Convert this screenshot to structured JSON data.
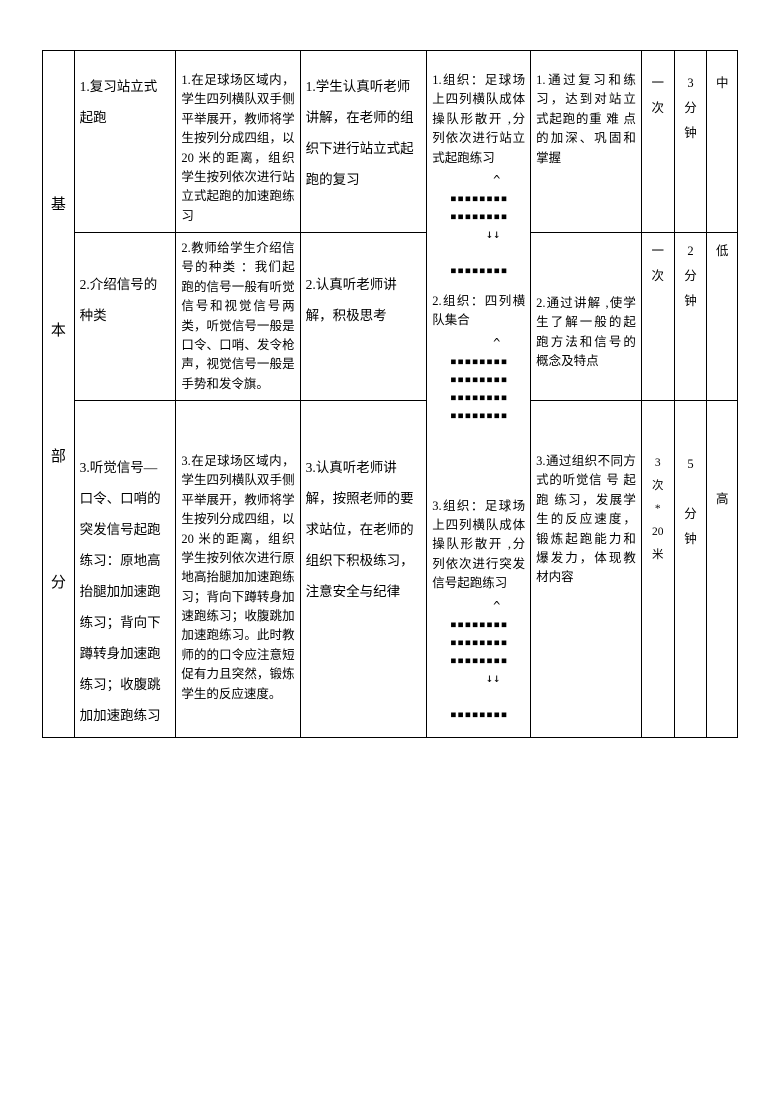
{
  "section_label": "基\n\n本\n\n部\n\n分",
  "rows": [
    {
      "col1": "1.复习站立式起跑",
      "col2": "1.在足球场区域内，学生四列横队双手侧平举展开，教师将学生按列分成四组，以 20 米的距离，组织学生按列依次进行站立式起跑的加速跑练习",
      "col3": "1.学生认真听老师讲解，在老师的组织下进行站立式起跑的复习",
      "col4_text": "1.组织：足球场上四列横队成体操队形散开 ,分列依次进行站立式起跑练习",
      "col4_formation": "     ^\n▪▪▪▪▪▪▪▪\n▪▪▪▪▪▪▪▪\n    ↓↓\n\n▪▪▪▪▪▪▪▪",
      "col5": "1.通过复习和练习，达到对站立式起跑的重 难 点 的加深、巩固和掌握",
      "col6": "一\n次",
      "col7": "3\n分\n钟",
      "col8": "中"
    },
    {
      "col1": "2.介绍信号的种类",
      "col2": "2.教师给学生介绍信号的种类 ：我们起跑的信号一般有听觉信号和视觉信号两类，听觉信号一般是口令、口哨、发令枪声，视觉信号一般是手势和发令旗。",
      "col3": "2.认真听老师讲解，积极思考",
      "col4_text": "2.组织：四列横队集合",
      "col4_formation": "     ^\n▪▪▪▪▪▪▪▪\n▪▪▪▪▪▪▪▪\n▪▪▪▪▪▪▪▪\n▪▪▪▪▪▪▪▪",
      "col5": "2.通过讲解 ,使学生了解一般的起跑方法和信号的概念及特点",
      "col6": "一\n次",
      "col7": "2\n分\n钟",
      "col8": "低"
    },
    {
      "col1": "3.听觉信号—口令、口哨的突发信号起跑练习：原地高抬腿加加速跑练习；背向下蹲转身加速跑练习；收腹跳加加速跑练习",
      "col2": "3.在足球场区域内，学生四列横队双手侧平举展开，教师将学生按列分成四组，以 20 米的距离，组织学生按列依次进行原地高抬腿加加速跑练习；背向下蹲转身加速跑练习；收腹跳加加速跑练习。此时教师的的口令应注意短促有力且突然，锻炼学生的反应速度。",
      "col3": "3.认真听老师讲解，按照老师的要求站位，在老师的组织下积极练习，注意安全与纪律",
      "col4_text": "3.组织：足球场上四列横队成体操队形散开 ,分列依次进行突发信号起跑练习",
      "col4_formation": "     ^\n▪▪▪▪▪▪▪▪\n▪▪▪▪▪▪▪▪\n▪▪▪▪▪▪▪▪\n    ↓↓\n\n▪▪▪▪▪▪▪▪",
      "col5": "3.通过组织不同方式的听觉信 号 起 跑 练习，发展学生的反应速度，锻炼起跑能力和爆发力，体现教材内容",
      "col6": "3\n次\n*\n20\n米",
      "col7": "5\n\n分\n钟",
      "col8": "高"
    }
  ]
}
